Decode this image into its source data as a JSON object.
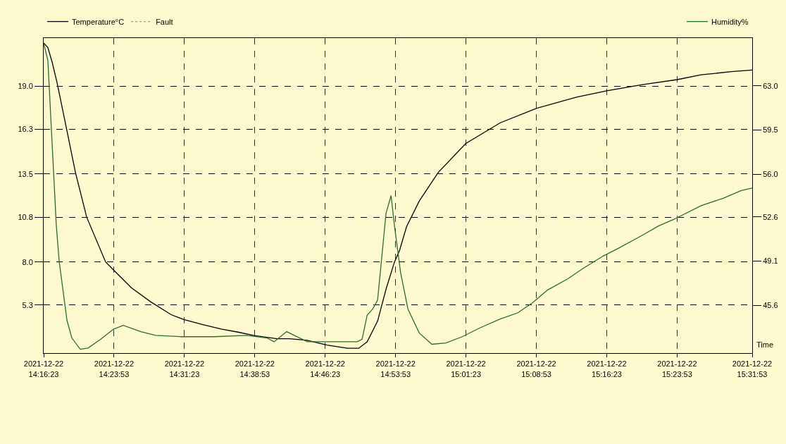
{
  "chart_data": {
    "type": "line",
    "xlabel": "Time",
    "legend": "top",
    "grid": true,
    "marker": "none",
    "xlim": [
      "2021-12-22T14:16:23",
      "2021-12-22T15:31:53"
    ],
    "xticks": [
      {
        "value": "2021-12-22T14:16:23",
        "label": "2021-12-22\n14:16:23"
      },
      {
        "value": "2021-12-22T14:23:53",
        "label": "2021-12-22\n14:23:53"
      },
      {
        "value": "2021-12-22T14:31:23",
        "label": "2021-12-22\n14:31:23"
      },
      {
        "value": "2021-12-22T14:38:53",
        "label": "2021-12-22\n14:38:53"
      },
      {
        "value": "2021-12-22T14:46:23",
        "label": "2021-12-22\n14:46:23"
      },
      {
        "value": "2021-12-22T14:53:53",
        "label": "2021-12-22\n14:53:53"
      },
      {
        "value": "2021-12-22T15:01:23",
        "label": "2021-12-22\n15:01:23"
      },
      {
        "value": "2021-12-22T15:08:53",
        "label": "2021-12-22\n15:08:53"
      },
      {
        "value": "2021-12-22T15:16:23",
        "label": "2021-12-22\n15:16:23"
      },
      {
        "value": "2021-12-22T15:23:53",
        "label": "2021-12-22\n15:23:53"
      },
      {
        "value": "2021-12-22T15:31:53",
        "label": "2021-12-22\n15:31:53"
      }
    ],
    "ylim": [
      2.3,
      22.0
    ],
    "yticks": [
      {
        "value": 5.3,
        "label": "5.3"
      },
      {
        "value": 8.0,
        "label": "8.0"
      },
      {
        "value": 10.8,
        "label": "10.8"
      },
      {
        "value": 13.5,
        "label": "13.5"
      },
      {
        "value": 16.3,
        "label": "16.3"
      },
      {
        "value": 19.0,
        "label": "19.0"
      }
    ],
    "y2lim": [
      41.8,
      66.8
    ],
    "y2ticks": [
      {
        "value": 45.6,
        "label": "45.6"
      },
      {
        "value": 49.1,
        "label": "49.1"
      },
      {
        "value": 52.6,
        "label": "52.6"
      },
      {
        "value": 56.0,
        "label": "56.0"
      },
      {
        "value": 59.5,
        "label": "59.5"
      },
      {
        "value": 63.0,
        "label": "63.0"
      }
    ],
    "series": [
      {
        "name": "Temperature°C",
        "color": "#000000",
        "line_style": "solid",
        "x": [
          "2021-12-22T14:16:23",
          "2021-12-22T14:16:50",
          "2021-12-22T14:17:17",
          "2021-12-22T14:17:49",
          "2021-12-22T14:18:52",
          "2021-12-22T14:19:46",
          "2021-12-22T14:20:58",
          "2021-12-22T14:22:59",
          "2021-12-22T14:23:49",
          "2021-12-22T14:25:42",
          "2021-12-22T14:27:48",
          "2021-12-22T14:29:58",
          "2021-12-22T14:31:19",
          "2021-12-22T14:33:12",
          "2021-12-22T14:35:18",
          "2021-12-22T14:37:11",
          "2021-12-22T14:38:50",
          "2021-12-22T14:41:14",
          "2021-12-22T14:42:35",
          "2021-12-22T14:44:28",
          "2021-12-22T14:46:34",
          "2021-12-22T14:48:45",
          "2021-12-22T14:49:57",
          "2021-12-22T14:50:51",
          "2021-12-22T14:51:58",
          "2021-12-22T14:52:52",
          "2021-12-22T14:53:46",
          "2021-12-22T14:54:18",
          "2021-12-22T14:55:03",
          "2021-12-22T14:56:24",
          "2021-12-22T14:58:26",
          "2021-12-22T15:01:21",
          "2021-12-22T15:05:02",
          "2021-12-22T15:08:52",
          "2021-12-22T15:13:09",
          "2021-12-22T15:16:22",
          "2021-12-22T15:20:17",
          "2021-12-22T15:23:53",
          "2021-12-22T15:26:26",
          "2021-12-22T15:29:40",
          "2021-12-22T15:31:53"
        ],
        "values": [
          21.7,
          21.4,
          20.5,
          19.2,
          16.2,
          13.6,
          10.8,
          8.0,
          7.5,
          6.4,
          5.5,
          4.7,
          4.4,
          4.1,
          3.8,
          3.6,
          3.4,
          3.2,
          3.2,
          3.1,
          2.8,
          2.6,
          2.6,
          3.0,
          4.3,
          6.3,
          8.0,
          8.7,
          10.2,
          11.8,
          13.6,
          15.4,
          16.7,
          17.6,
          18.3,
          18.7,
          19.1,
          19.4,
          19.7,
          19.9,
          20.0
        ]
      },
      {
        "name": "Fault",
        "color": "#b09090",
        "line_style": "dotted"
      },
      {
        "name": "Humidity%",
        "color": "#2e6b2e",
        "axis": "y2",
        "line_style": "solid",
        "x": [
          "2021-12-22T14:16:23",
          "2021-12-22T14:16:50",
          "2021-12-22T14:17:13",
          "2021-12-22T14:17:44",
          "2021-12-22T14:18:02",
          "2021-12-22T14:18:52",
          "2021-12-22T14:19:23",
          "2021-12-22T14:20:17",
          "2021-12-22T14:21:07",
          "2021-12-22T14:22:28",
          "2021-12-22T14:23:49",
          "2021-12-22T14:24:52",
          "2021-12-22T14:26:45",
          "2021-12-22T14:28:19",
          "2021-12-22T14:31:01",
          "2021-12-22T14:34:33",
          "2021-12-22T14:38:00",
          "2021-12-22T14:40:11",
          "2021-12-22T14:40:56",
          "2021-12-22T14:42:17",
          "2021-12-22T14:44:28",
          "2021-12-22T14:46:34",
          "2021-12-22T14:49:48",
          "2021-12-22T14:50:19",
          "2021-12-22T14:50:51",
          "2021-12-22T14:51:27",
          "2021-12-22T14:51:58",
          "2021-12-22T14:52:52",
          "2021-12-22T14:53:24",
          "2021-12-22T14:53:46",
          "2021-12-22T14:54:25",
          "2021-12-22T14:55:12",
          "2021-12-22T14:56:24",
          "2021-12-22T14:57:45",
          "2021-12-22T14:59:15",
          "2021-12-22T15:00:59",
          "2021-12-22T15:02:52",
          "2021-12-22T15:05:02",
          "2021-12-22T15:06:55",
          "2021-12-22T15:08:29",
          "2021-12-22T15:10:04",
          "2021-12-22T15:12:15",
          "2021-12-22T15:13:49",
          "2021-12-22T15:16:00",
          "2021-12-22T15:17:35",
          "2021-12-22T15:20:03",
          "2021-12-22T15:21:56",
          "2021-12-22T15:23:30",
          "2021-12-22T15:26:26",
          "2021-12-22T15:28:50",
          "2021-12-22T15:30:43",
          "2021-12-22T15:31:53"
        ],
        "values": [
          66.4,
          65.0,
          59.4,
          51.9,
          49.1,
          44.4,
          43.0,
          42.1,
          42.2,
          42.9,
          43.7,
          44.0,
          43.5,
          43.2,
          43.1,
          43.1,
          43.2,
          43.0,
          42.7,
          43.5,
          42.7,
          42.7,
          42.7,
          42.9,
          44.8,
          45.3,
          46.0,
          52.9,
          54.3,
          51.9,
          48.2,
          45.3,
          43.4,
          42.5,
          42.6,
          43.1,
          43.8,
          44.5,
          45.0,
          45.8,
          46.8,
          47.7,
          48.5,
          49.5,
          50.1,
          51.1,
          51.9,
          52.4,
          53.5,
          54.1,
          54.7,
          54.9
        ]
      }
    ]
  }
}
